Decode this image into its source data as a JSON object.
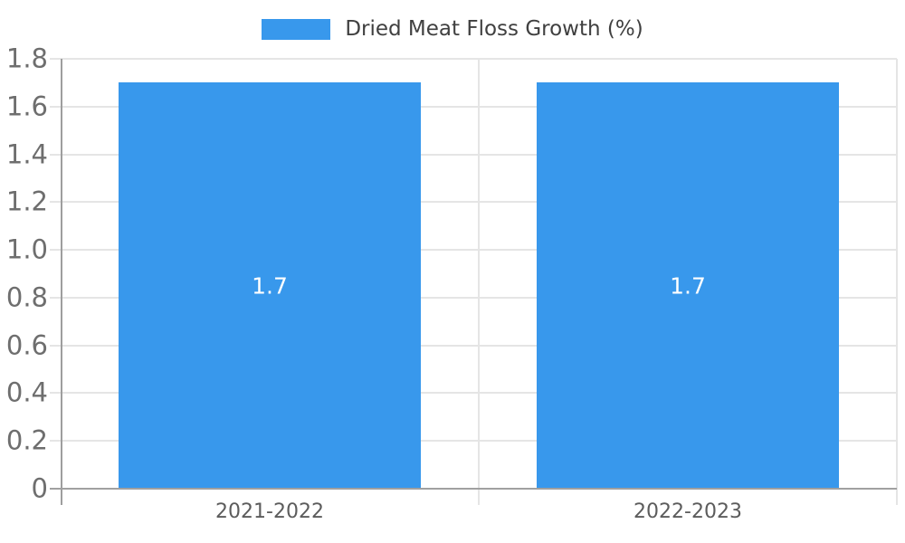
{
  "legend": {
    "position": "top-center"
  },
  "colors": {
    "bar": "#3898EC",
    "grid": "#E5E5E5",
    "axis": "#9E9E9E",
    "y_tick_text": "#6E6E6E",
    "x_label_text": "#5C5C5C",
    "legend_text": "#404040",
    "bar_label_text": "#FFFFFF",
    "background": "#FFFFFF"
  },
  "chart_data": {
    "type": "bar",
    "title": "",
    "categories": [
      "2021-2022",
      "2022-2023"
    ],
    "series": [
      {
        "name": "Dried Meat Floss Growth (%)",
        "values": [
          1.7,
          1.7
        ]
      }
    ],
    "data_labels": [
      "1.7",
      "1.7"
    ],
    "ylim": [
      0,
      1.8
    ],
    "ytick_step": 0.2,
    "ytick_labels": [
      "0",
      "0.2",
      "0.4",
      "0.6",
      "0.8",
      "1.0",
      "1.2",
      "1.4",
      "1.6",
      "1.8"
    ],
    "xlabel": "",
    "ylabel": "",
    "grid": true,
    "legend_position": "top-center"
  }
}
